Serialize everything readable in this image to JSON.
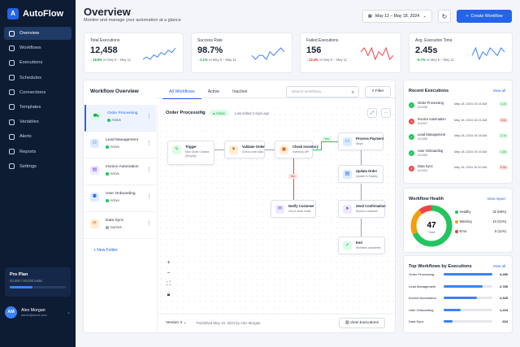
{
  "app": {
    "name": "AutoFlow",
    "logo_letter": "A"
  },
  "nav": [
    {
      "label": "Overview",
      "icon": "grid-icon"
    },
    {
      "label": "Workflows",
      "icon": "flow-icon"
    },
    {
      "label": "Executions",
      "icon": "play-icon"
    },
    {
      "label": "Schedules",
      "icon": "calendar-icon"
    },
    {
      "label": "Connections",
      "icon": "link-icon"
    },
    {
      "label": "Templates",
      "icon": "template-icon"
    },
    {
      "label": "Variables",
      "icon": "code-icon"
    },
    {
      "label": "Alerts",
      "icon": "bell-icon"
    },
    {
      "label": "Reports",
      "icon": "chart-icon"
    },
    {
      "label": "Settings",
      "icon": "gear-icon"
    }
  ],
  "plan": {
    "title": "Pro Plan",
    "usage": "20,000 / 50,000 tasks",
    "used_fraction": 0.4
  },
  "user": {
    "initials": "AM",
    "name": "Alex Morgan",
    "email": "admin@acme.com"
  },
  "header": {
    "title": "Overview",
    "subtitle": "Monitor and manage your automation at a glance",
    "date_range": "May 12 – May 18, 2024",
    "create_label": "Create Workflow"
  },
  "kpis": [
    {
      "label": "Total Executions",
      "value": "12,458",
      "delta": "↑ 18.6%",
      "note": "vs May 5 – May 11",
      "trend": "up",
      "spark": [
        3,
        4,
        3,
        5,
        4,
        6,
        5,
        7,
        6,
        8
      ]
    },
    {
      "label": "Success Rate",
      "value": "98.7%",
      "delta": "↑ 2.1%",
      "note": "vs May 5 – May 11",
      "trend": "up",
      "spark": [
        5,
        4,
        5,
        5,
        4,
        6,
        5,
        6,
        7,
        6
      ]
    },
    {
      "label": "Failed Executions",
      "value": "156",
      "delta": "↓ 12.4%",
      "note": "vs May 5 – May 11",
      "trend": "down",
      "spark": [
        5,
        6,
        4,
        6,
        3,
        5,
        4,
        6,
        3,
        4
      ]
    },
    {
      "label": "Avg. Execution Time",
      "value": "2.45s",
      "delta": "↑ 8.7%",
      "note": "vs May 5 – May 11",
      "trend": "up",
      "spark": [
        4,
        6,
        3,
        5,
        4,
        6,
        5,
        4,
        6,
        5
      ]
    }
  ],
  "workflow_overview": {
    "title": "Workflow Overview",
    "tabs": [
      "All Workflows",
      "Active",
      "Inactive"
    ],
    "search_placeholder": "Search workflows...",
    "filter_label": "Filter",
    "items": [
      {
        "name": "Order Processing",
        "status": "Active",
        "icon": "cart-icon"
      },
      {
        "name": "Lead Management",
        "status": "Active",
        "icon": "users-icon"
      },
      {
        "name": "Invoice Automation",
        "status": "Active",
        "icon": "document-icon"
      },
      {
        "name": "User Onboarding",
        "status": "Active",
        "icon": "user-plus-icon"
      },
      {
        "name": "Data Sync",
        "status": "Inactive",
        "icon": "sync-icon"
      }
    ],
    "new_folder": "+ New Folder"
  },
  "canvas": {
    "title": "Order Processing",
    "badge": "Active",
    "last_edited": "Last edited 3 days ago",
    "nodes": [
      {
        "title": "Trigger",
        "sub": "New Order Created",
        "sub2": "(Shopify)",
        "icon": "bolt-icon"
      },
      {
        "title": "Validate Order",
        "sub": "Check order data",
        "icon": "filter-icon"
      },
      {
        "title": "Check Inventory",
        "sub": "Inventory API",
        "icon": "box-icon"
      },
      {
        "title": "Process Payment",
        "sub": "Stripe",
        "icon": "card-icon"
      },
      {
        "title": "Update Order",
        "sub": "Update in Shopify",
        "icon": "document-icon"
      },
      {
        "title": "Send Confirmation",
        "sub": "Email to customer",
        "icon": "send-icon"
      },
      {
        "title": "End",
        "sub": "Workflow completed",
        "icon": "check-icon"
      },
      {
        "title": "Notify Customer",
        "sub": "Out of stock email",
        "icon": "mail-icon"
      }
    ],
    "yes_label": "Yes",
    "no_label": "No",
    "version": "Version 4",
    "published": "Published May 10, 2024 by Alex Morgan",
    "view_executions": "View Executions"
  },
  "recent": {
    "title": "Recent Executions",
    "view_all": "View all",
    "rows": [
      {
        "name": "Order Processing",
        "id": "#12458",
        "time": "May 18, 2024 10:24 AM",
        "duration": "1.2s",
        "status": "success"
      },
      {
        "name": "Invoice Automation",
        "id": "#12457",
        "time": "May 18, 2024 10:21 AM",
        "duration": "3.6s",
        "status": "failed"
      },
      {
        "name": "Lead Management",
        "id": "#12456",
        "time": "May 18, 2024 10:18 AM",
        "duration": "2.1s",
        "status": "success"
      },
      {
        "name": "User Onboarding",
        "id": "#12455",
        "time": "May 18, 2024 10:15 AM",
        "duration": "1.8s",
        "status": "success"
      },
      {
        "name": "Data Sync",
        "id": "#12454",
        "time": "May 18, 2024 10:10 AM",
        "duration": "0.0s",
        "status": "failed"
      }
    ]
  },
  "health": {
    "title": "Workflow Health",
    "view_report": "View report",
    "total": "47",
    "total_label": "Total",
    "segments": [
      {
        "label": "Healthy",
        "count": "32 (68%)",
        "value": 32,
        "color": "#22c55e"
      },
      {
        "label": "Warning",
        "count": "10 (21%)",
        "value": 10,
        "color": "#f59e0b"
      },
      {
        "label": "Error",
        "count": "5 (11%)",
        "value": 5,
        "color": "#ef4444"
      }
    ]
  },
  "top_workflows": {
    "title": "Top Workflows by Executions",
    "view_all": "View all",
    "rows": [
      {
        "name": "Order Processing",
        "value": "3,456",
        "n": 3456
      },
      {
        "name": "Lead Management",
        "value": "2,789",
        "n": 2789
      },
      {
        "name": "Invoice Automation",
        "value": "2,345",
        "n": 2345
      },
      {
        "name": "User Onboarding",
        "value": "1,234",
        "n": 1234
      },
      {
        "name": "Data Sync",
        "value": "634",
        "n": 634
      }
    ]
  }
}
